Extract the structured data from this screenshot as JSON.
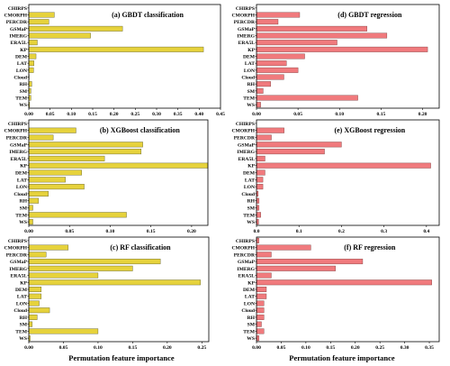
{
  "figure": {
    "x_label_left": "Permutation feature importance",
    "x_label_right": "Permutation feature importance"
  },
  "colors": {
    "classification_bar": "#e6d23c",
    "regression_bar": "#f07a7d",
    "bar_edge": "#5a5a2a",
    "reg_edge": "#7a3a3a"
  },
  "chart_data": [
    {
      "type": "bar",
      "orientation": "horizontal",
      "title": "(a) GBDT classification",
      "categories": [
        "CHIRPS",
        "CMORPH",
        "PERCDR",
        "GSMaP",
        "IMERG",
        "ERA5L",
        "KP",
        "DEM",
        "LAT",
        "LON",
        "Cloud",
        "RH",
        "SM",
        "TEM",
        "WS"
      ],
      "values": [
        0.0,
        0.06,
        0.047,
        0.22,
        0.145,
        0.02,
        0.41,
        0.017,
        0.012,
        0.011,
        0.001,
        0.007,
        0.005,
        0.005,
        0.002
      ],
      "xlim": [
        0,
        0.45
      ],
      "xticks": [
        "0.00",
        "0.05",
        "0.10",
        "0.15",
        "0.20",
        "0.25",
        "0.30",
        "0.35",
        "0.40",
        "0.45"
      ],
      "tick_values": [
        0,
        0.05,
        0.1,
        0.15,
        0.2,
        0.25,
        0.3,
        0.35,
        0.4,
        0.45
      ]
    },
    {
      "type": "bar",
      "orientation": "horizontal",
      "title": "(d) GBDT regression",
      "categories": [
        "CHIRPS",
        "CMORPH",
        "PERCDR",
        "GSMaP",
        "IMERG",
        "ERA5L",
        "KP",
        "DEM",
        "LAT",
        "LON",
        "Cloud",
        "RH",
        "SM",
        "TEM",
        "WS"
      ],
      "values": [
        0.0,
        0.052,
        0.026,
        0.133,
        0.157,
        0.097,
        0.206,
        0.058,
        0.036,
        0.05,
        0.033,
        0.017,
        0.008,
        0.122,
        0.005
      ],
      "xlim": [
        0,
        0.22
      ],
      "xticks": [
        "0.00",
        "0.05",
        "0.10",
        "0.15",
        "0.20"
      ],
      "tick_values": [
        0,
        0.05,
        0.1,
        0.15,
        0.2
      ]
    },
    {
      "type": "bar",
      "orientation": "horizontal",
      "title": "(b) XGBoost classification",
      "categories": [
        "CHIRPS",
        "CMORPH",
        "PERCDR",
        "GSMaP",
        "IMERG",
        "ERA5L",
        "KP",
        "DEM",
        "LAT",
        "LON",
        "Cloud",
        "RH",
        "SM",
        "TEM",
        "WS"
      ],
      "values": [
        0.0,
        0.058,
        0.03,
        0.14,
        0.138,
        0.093,
        0.22,
        0.065,
        0.045,
        0.068,
        0.024,
        0.012,
        0.005,
        0.12,
        0.005
      ],
      "xlim": [
        0,
        0.22
      ],
      "xticks": [
        "0.00",
        "0.05",
        "0.10",
        "0.15",
        "0.20"
      ],
      "tick_values": [
        0,
        0.05,
        0.1,
        0.15,
        0.2
      ]
    },
    {
      "type": "bar",
      "orientation": "horizontal",
      "title": "(e) XGBoost regression",
      "categories": [
        "CHIRPS",
        "CMORPH",
        "PERCDR",
        "GSMaP",
        "IMERG",
        "ERA5L",
        "KP",
        "DEM",
        "LAT",
        "LON",
        "Cloud",
        "RH",
        "SM",
        "TEM",
        "WS"
      ],
      "values": [
        0.0,
        0.065,
        0.035,
        0.2,
        0.16,
        0.02,
        0.41,
        0.02,
        0.015,
        0.015,
        0.004,
        0.006,
        0.006,
        0.01,
        0.005
      ],
      "xlim": [
        0,
        0.43
      ],
      "xticks": [
        "0.0",
        "0.1",
        "0.2",
        "0.3",
        "0.4"
      ],
      "tick_values": [
        0,
        0.1,
        0.2,
        0.3,
        0.4
      ]
    },
    {
      "type": "bar",
      "orientation": "horizontal",
      "title": "(c) RF classification",
      "categories": [
        "CHIRPS",
        "CMORPH",
        "PERCDR",
        "GSMaP",
        "IMERG",
        "ERA5L",
        "KP",
        "DEM",
        "LAT",
        "LON",
        "Cloud",
        "RH",
        "SM",
        "TEM",
        "WS"
      ],
      "values": [
        0.0,
        0.057,
        0.025,
        0.19,
        0.15,
        0.1,
        0.248,
        0.018,
        0.018,
        0.015,
        0.03,
        0.012,
        0.005,
        0.1,
        0.002
      ],
      "xlim": [
        0,
        0.26
      ],
      "xticks": [
        "0.00",
        "0.05",
        "0.10",
        "0.15",
        "0.20",
        "0.25"
      ],
      "tick_values": [
        0,
        0.05,
        0.1,
        0.15,
        0.2,
        0.25
      ]
    },
    {
      "type": "bar",
      "orientation": "horizontal",
      "title": "(f) RF regression",
      "categories": [
        "CHIRPS",
        "CMORPH",
        "PERCDR",
        "GSMaP",
        "IMERG",
        "ERA5L",
        "KP",
        "DEM",
        "LAT",
        "LON",
        "Cloud",
        "RH",
        "SM",
        "TEM",
        "WS"
      ],
      "values": [
        0.005,
        0.11,
        0.03,
        0.215,
        0.16,
        0.03,
        0.355,
        0.02,
        0.02,
        0.015,
        0.015,
        0.015,
        0.01,
        0.015,
        0.005
      ],
      "xlim": [
        0,
        0.37
      ],
      "xticks": [
        "0.00",
        "0.05",
        "0.10",
        "0.15",
        "0.20",
        "0.25",
        "0.30",
        "0.35"
      ],
      "tick_values": [
        0,
        0.05,
        0.1,
        0.15,
        0.2,
        0.25,
        0.3,
        0.35
      ]
    }
  ]
}
